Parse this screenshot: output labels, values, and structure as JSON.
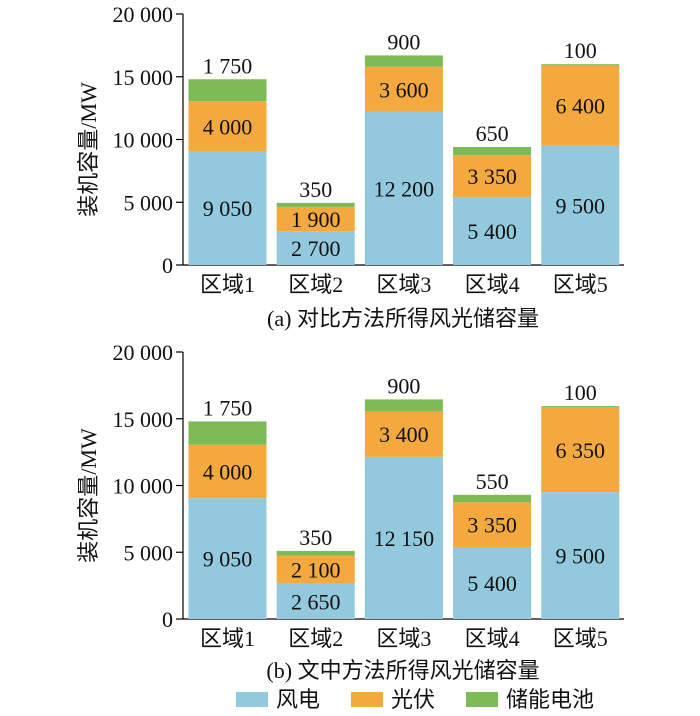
{
  "legend": [
    {
      "label": "风电",
      "color": "#92c9dd"
    },
    {
      "label": "光伏",
      "color": "#f3a93d"
    },
    {
      "label": "储能电池",
      "color": "#7dbb57"
    }
  ],
  "chart_data": [
    {
      "type": "bar",
      "stacked": true,
      "caption": "(a)  对比方法所得风光储容量",
      "ylabel": "装机容量/MW",
      "ylim": [
        0,
        20000
      ],
      "yticks": [
        0,
        5000,
        10000,
        15000,
        20000
      ],
      "ytick_labels": [
        "0",
        "5 000",
        "10 000",
        "15 000",
        "20 000"
      ],
      "categories": [
        "区域1",
        "区域2",
        "区域3",
        "区域4",
        "区域5"
      ],
      "series": [
        {
          "name": "风电",
          "values": [
            9050,
            2700,
            12200,
            5400,
            9500
          ],
          "labels": [
            "9 050",
            "2 700",
            "12 200",
            "5 400",
            "9 500"
          ]
        },
        {
          "name": "光伏",
          "values": [
            4000,
            1900,
            3600,
            3350,
            6400
          ],
          "labels": [
            "4 000",
            "1 900",
            "3 600",
            "3 350",
            "6 400"
          ]
        },
        {
          "name": "储能电池",
          "values": [
            1750,
            350,
            900,
            650,
            100
          ],
          "labels": [
            "1 750",
            "350",
            "900",
            "650",
            "100"
          ]
        }
      ]
    },
    {
      "type": "bar",
      "stacked": true,
      "caption": "(b)  文中方法所得风光储容量",
      "ylabel": "装机容量/MW",
      "ylim": [
        0,
        20000
      ],
      "yticks": [
        0,
        5000,
        10000,
        15000,
        20000
      ],
      "ytick_labels": [
        "0",
        "5 000",
        "10 000",
        "15 000",
        "20 000"
      ],
      "categories": [
        "区域1",
        "区域2",
        "区域3",
        "区域4",
        "区域5"
      ],
      "series": [
        {
          "name": "风电",
          "values": [
            9050,
            2650,
            12150,
            5400,
            9500
          ],
          "labels": [
            "9 050",
            "2 650",
            "12 150",
            "5 400",
            "9 500"
          ]
        },
        {
          "name": "光伏",
          "values": [
            4000,
            2100,
            3400,
            3350,
            6350
          ],
          "labels": [
            "4 000",
            "2 100",
            "3 400",
            "3 350",
            "6 350"
          ]
        },
        {
          "name": "储能电池",
          "values": [
            1750,
            350,
            900,
            550,
            100
          ],
          "labels": [
            "1 750",
            "350",
            "900",
            "550",
            "100"
          ]
        }
      ]
    }
  ]
}
